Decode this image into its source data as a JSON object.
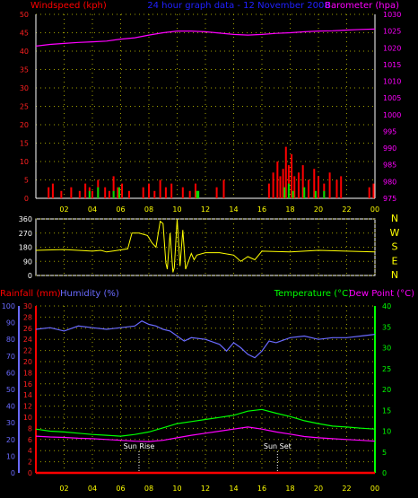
{
  "header": {
    "left_label": "Windspeed (kph)",
    "center_label": "24 hour graph data - 12 November 2008",
    "right_label": "Barometer (hpa)"
  },
  "bottom_header": {
    "rainfall_label": "Rainfall (mm)",
    "humidity_label": "Humidity (%)",
    "temperature_label": "Temperature (°C)",
    "dewpoint_label": "Dew Point (°C)"
  },
  "annotations": {
    "sunrise": "Sun Rise",
    "sunset": "Sun Set"
  },
  "colors": {
    "windspeed": "#ff0000",
    "gust": "#00dd00",
    "barometer": "#ff00ff",
    "direction": "#ffff00",
    "humidity": "#6a6aff",
    "temperature": "#00ff00",
    "dewpoint": "#ff00ff",
    "rainfall": "#ff0000",
    "grid": "#a0a000",
    "axis": "#ffffff"
  },
  "chart_data": [
    {
      "type": "line",
      "title": "24 hour graph data - 12 November 2008",
      "ylabel_left": "Windspeed (kph)",
      "ylabel_right": "Barometer (hpa)",
      "x_ticks": [
        "02",
        "04",
        "06",
        "08",
        "10",
        "12",
        "14",
        "16",
        "18",
        "20",
        "22",
        "00"
      ],
      "x_range": [
        0,
        24
      ],
      "ylim_left": [
        0,
        50
      ],
      "yticks_left": [
        0,
        5,
        10,
        15,
        20,
        25,
        30,
        35,
        40,
        45,
        50
      ],
      "ylim_right": [
        975,
        1030
      ],
      "yticks_right": [
        975,
        980,
        985,
        990,
        995,
        1000,
        1005,
        1010,
        1015,
        1020,
        1025,
        1030
      ],
      "grid": true,
      "series": [
        {
          "name": "Windspeed",
          "axis": "left",
          "kind": "bars",
          "x": [
            0.9,
            1.2,
            1.8,
            2.5,
            3.1,
            3.5,
            3.8,
            4.0,
            4.4,
            4.9,
            5.2,
            5.5,
            5.8,
            6.1,
            6.6,
            7.6,
            8.0,
            8.4,
            8.8,
            9.2,
            9.6,
            10.4,
            10.9,
            11.3,
            12.8,
            13.3,
            16.5,
            16.8,
            17.1,
            17.3,
            17.5,
            17.7,
            17.9,
            18.1,
            18.3,
            18.6,
            18.9,
            19.3,
            19.7,
            20.0,
            20.4,
            20.8,
            21.3,
            21.6,
            23.6,
            23.9
          ],
          "y": [
            3,
            4,
            2,
            3,
            2,
            4,
            3,
            2,
            5,
            3,
            2,
            6,
            3,
            4,
            2,
            3,
            4,
            2,
            5,
            3,
            4,
            3,
            2,
            4,
            3,
            5,
            4,
            7,
            10,
            6,
            8,
            14,
            9,
            12,
            6,
            7,
            9,
            5,
            8,
            6,
            4,
            7,
            5,
            6,
            3,
            4
          ]
        },
        {
          "name": "Gust",
          "axis": "left",
          "kind": "bars",
          "x": [
            3.8,
            4.4,
            5.5,
            5.9,
            11.4,
            11.5,
            17.6,
            17.9,
            18.2,
            19.0,
            19.8,
            20.4
          ],
          "y": [
            2,
            3,
            2,
            3,
            2,
            2,
            3,
            4,
            2,
            3,
            2,
            2
          ]
        },
        {
          "name": "Barometer",
          "axis": "right",
          "kind": "line",
          "x": [
            0,
            1,
            2,
            3,
            4,
            5,
            6,
            7,
            8,
            9,
            10,
            11,
            12,
            13,
            14,
            15,
            16,
            17,
            18,
            19,
            20,
            21,
            22,
            23,
            24
          ],
          "y": [
            1020.5,
            1021,
            1021.3,
            1021.6,
            1021.8,
            1022,
            1022.6,
            1023,
            1023.8,
            1024.5,
            1025,
            1025,
            1024.8,
            1024.4,
            1024,
            1023.8,
            1024,
            1024.3,
            1024.5,
            1024.8,
            1025,
            1025.1,
            1025.3,
            1025.5,
            1025.6
          ]
        }
      ]
    },
    {
      "type": "line",
      "title": "",
      "ylabel_right": "",
      "x_range": [
        0,
        24
      ],
      "ylim": [
        0,
        360
      ],
      "yticks": [
        0,
        90,
        180,
        270,
        360
      ],
      "compass_labels": [
        "N",
        "W",
        "S",
        "E",
        "N"
      ],
      "grid": true,
      "series": [
        {
          "name": "",
          "kind": "line",
          "x": [
            0,
            2,
            4,
            4.6,
            5,
            5.4,
            6.5,
            6.8,
            7.3,
            7.9,
            8.2,
            8.5,
            8.8,
            9.0,
            9.2,
            9.3,
            9.5,
            9.7,
            9.8,
            10.0,
            10.2,
            10.4,
            10.6,
            10.8,
            11.0,
            11.2,
            11.4,
            12,
            13,
            14,
            14.5,
            15,
            15.5,
            16,
            18,
            20,
            22,
            24
          ],
          "y": [
            160,
            165,
            155,
            160,
            150,
            155,
            170,
            270,
            270,
            255,
            210,
            180,
            345,
            330,
            80,
            40,
            270,
            20,
            50,
            360,
            60,
            290,
            40,
            90,
            140,
            100,
            130,
            145,
            145,
            130,
            90,
            120,
            100,
            155,
            150,
            160,
            155,
            150
          ]
        }
      ]
    },
    {
      "type": "line",
      "title": "",
      "ylabel_left": "Humidity (%)",
      "ylabel_left2": "Rainfall (mm)",
      "ylabel_right": "Temperature (°C)",
      "ylabel_right2": "Dew Point (°C)",
      "x_ticks": [
        "02",
        "04",
        "06",
        "08",
        "10",
        "12",
        "14",
        "16",
        "18",
        "20",
        "22",
        "00"
      ],
      "x_range": [
        0,
        24
      ],
      "ylim_humidity": [
        0,
        100
      ],
      "yticks_humidity": [
        0,
        10,
        20,
        30,
        40,
        50,
        60,
        70,
        80,
        90,
        100
      ],
      "ylim_rainfall": [
        0,
        30
      ],
      "yticks_rainfall": [
        0,
        2,
        4,
        6,
        8,
        10,
        12,
        14,
        16,
        18,
        20,
        22,
        24,
        26,
        28,
        30
      ],
      "ylim_temperature": [
        0,
        40
      ],
      "yticks_temperature": [
        0,
        5,
        10,
        15,
        20,
        25,
        30,
        35,
        40
      ],
      "grid": true,
      "series": [
        {
          "name": "Humidity",
          "axis": "humidity",
          "x": [
            0,
            1,
            2,
            3,
            4,
            5,
            6,
            7,
            7.5,
            8,
            8.5,
            9,
            9.5,
            10,
            10.5,
            11,
            12,
            13,
            13.5,
            14,
            14.5,
            15,
            15.5,
            16,
            16.5,
            17,
            18,
            19,
            20,
            21,
            22,
            23,
            24
          ],
          "y": [
            86,
            87,
            85,
            88,
            87,
            86,
            87,
            88,
            91,
            89,
            88,
            86,
            85,
            82,
            79,
            81,
            80,
            77,
            73,
            78,
            75,
            71,
            69,
            73,
            79,
            78,
            81,
            82,
            80,
            81,
            81,
            82,
            83
          ]
        },
        {
          "name": "Temperature",
          "axis": "temperature",
          "x": [
            0,
            1,
            2,
            3,
            4,
            5,
            6,
            7,
            8,
            9,
            10,
            11,
            12,
            13,
            14,
            15,
            16,
            17,
            18,
            19,
            20,
            21,
            22,
            23,
            24
          ],
          "y": [
            10.5,
            10,
            9.8,
            9.5,
            9.2,
            9,
            8.8,
            9.2,
            9.8,
            10.8,
            11.8,
            12.3,
            12.8,
            13.3,
            13.8,
            14.8,
            15.2,
            14.3,
            13.5,
            12.5,
            11.8,
            11.2,
            11,
            10.7,
            10.5
          ]
        },
        {
          "name": "Dew Point",
          "axis": "temperature",
          "x": [
            0,
            1,
            2,
            3,
            4,
            5,
            6,
            7,
            8,
            9,
            10,
            11,
            12,
            13,
            14,
            15,
            16,
            17,
            18,
            19,
            20,
            21,
            22,
            23,
            24
          ],
          "y": [
            8.8,
            8.6,
            8.5,
            8.3,
            8.2,
            8,
            7.8,
            7.6,
            7.5,
            7.8,
            8.4,
            9,
            9.5,
            10,
            10.5,
            11,
            10.5,
            9.8,
            9.3,
            8.7,
            8.4,
            8.2,
            8,
            7.8,
            7.6
          ]
        },
        {
          "name": "Rainfall",
          "axis": "rainfall",
          "x": [
            0,
            24
          ],
          "y": [
            0,
            0
          ]
        }
      ],
      "markers": [
        {
          "label": "Sun Rise",
          "x": 7.3
        },
        {
          "label": "Sun Set",
          "x": 17.1
        }
      ]
    }
  ]
}
